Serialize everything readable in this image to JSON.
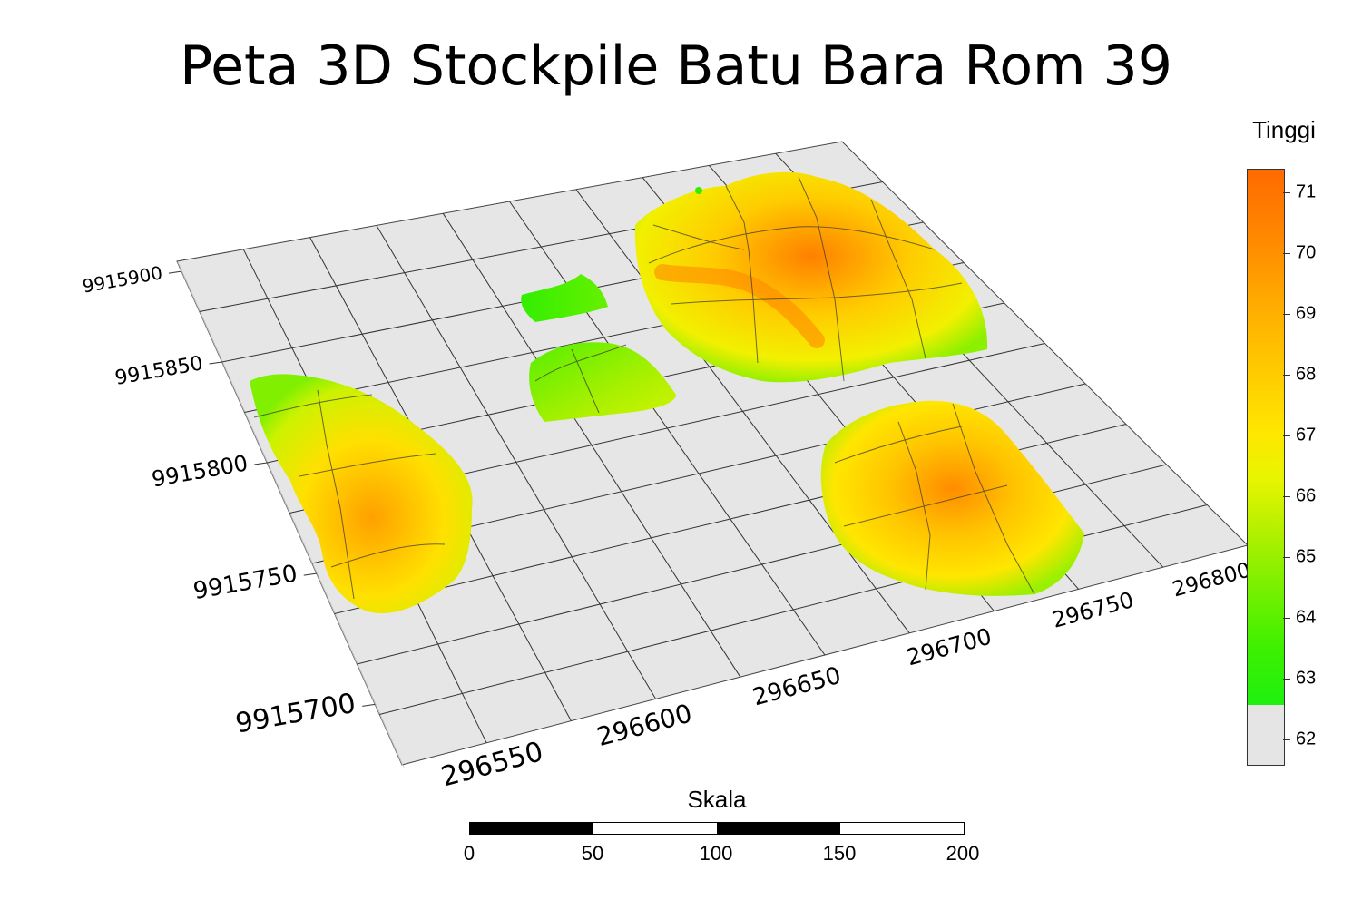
{
  "title": "Peta 3D Stockpile Batu Bara Rom 39",
  "legend": {
    "title": "Tinggi",
    "labels": [
      "71",
      "70",
      "69",
      "68",
      "67",
      "66",
      "65",
      "64",
      "63",
      "62"
    ],
    "max_color": "#ff6a00",
    "min_color": "#1ef010",
    "base_color": "#e5e5e5"
  },
  "axes": {
    "northing_labels": [
      "9915900",
      "9915850",
      "9915800",
      "9915750",
      "9915700"
    ],
    "easting_labels": [
      "296550",
      "296600",
      "296650",
      "296700",
      "296750",
      "296800"
    ]
  },
  "scale": {
    "title": "Skala",
    "labels": [
      "0",
      "50",
      "100",
      "150",
      "200"
    ]
  },
  "colors": {
    "plane": "#e6e6e6",
    "grid": "#333333",
    "high": "#ff7a00",
    "mid": "#ffe600",
    "low": "#33ee00"
  }
}
